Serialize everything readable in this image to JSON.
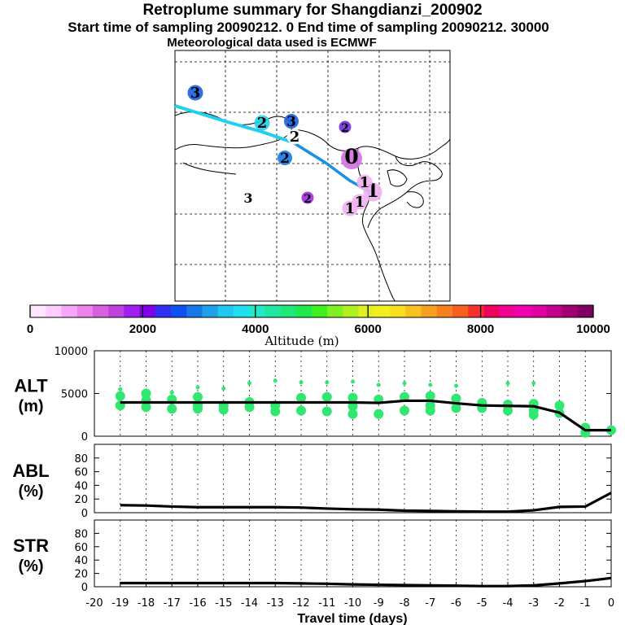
{
  "header": {
    "title": "Retroplume summary for Shangdianzi_200902",
    "sampling": "Start time of sampling 20090212.     0     End time of sampling 20090212. 30000",
    "met": "Meteorological data used is ECMWF"
  },
  "colorbar": {
    "title": "Altitude (m)",
    "tick_labels": [
      "0",
      "2000",
      "4000",
      "6000",
      "8000",
      "10000"
    ],
    "colors": [
      "#ffe6ff",
      "#ffccff",
      "#f5a8f5",
      "#ec84ec",
      "#d860e0",
      "#c040e0",
      "#a020f0",
      "#8000e8",
      "#3030f0",
      "#1050f0",
      "#1878e8",
      "#20a0e8",
      "#20c8f0",
      "#20e0f0",
      "#20e8c8",
      "#20e8a0",
      "#20e878",
      "#20e850",
      "#40f020",
      "#80f020",
      "#b0f020",
      "#e0f020",
      "#f0f020",
      "#f8e020",
      "#f8c020",
      "#f8a020",
      "#f88020",
      "#f86020",
      "#f83030",
      "#f00060",
      "#f00090",
      "#f000b0",
      "#e000a0",
      "#c0008a",
      "#a00070",
      "#800060"
    ]
  },
  "map": {
    "labels": [
      {
        "text": "3",
        "color": "#1860e0"
      },
      {
        "text": "2",
        "color": "#20d0e8"
      },
      {
        "text": "3",
        "color": "#1860e0"
      },
      {
        "text": "2",
        "color": "#7030e0"
      },
      {
        "text": "2",
        "color": "#ffffff"
      },
      {
        "text": "2",
        "color": "#1878e8"
      },
      {
        "text": "0",
        "color": "#d070e0"
      },
      {
        "text": "3",
        "color": "#ffffff"
      },
      {
        "text": "2",
        "color": "#a030e0"
      },
      {
        "text": "1",
        "color": "#f0b0f0"
      },
      {
        "text": "1",
        "color": "#f0b0f0"
      },
      {
        "text": "1",
        "color": "#f0b0f0"
      },
      {
        "text": "1",
        "color": "#f0b0f0"
      }
    ]
  },
  "chart_data": [
    {
      "type": "line",
      "title": "ALT (m)",
      "ylabel_line1": "ALT",
      "ylabel_line2": "(m)",
      "ylim": [
        0,
        10000
      ],
      "yticks": [
        "10000",
        "5000",
        "0"
      ],
      "ytick_values": [
        10000,
        5000,
        0
      ],
      "x": [
        -19,
        -18,
        -17,
        -16,
        -15,
        -14,
        -13,
        -12,
        -11,
        -10,
        -9,
        -8,
        -7,
        -6,
        -5,
        -4,
        -3,
        -2,
        -1,
        0
      ],
      "values": [
        3950,
        3950,
        3950,
        3950,
        3950,
        3950,
        3950,
        3950,
        3950,
        3950,
        3900,
        4150,
        4150,
        3850,
        3600,
        3550,
        3500,
        2750,
        700,
        700
      ],
      "scatter": [
        {
          "x": -19,
          "y": 5500
        },
        {
          "x": -19,
          "y": 4700
        },
        {
          "x": -19,
          "y": 3600
        },
        {
          "x": -18,
          "y": 5000
        },
        {
          "x": -18,
          "y": 4200
        },
        {
          "x": -18,
          "y": 3400
        },
        {
          "x": -17,
          "y": 5100
        },
        {
          "x": -17,
          "y": 4300
        },
        {
          "x": -17,
          "y": 3200
        },
        {
          "x": -16,
          "y": 5700
        },
        {
          "x": -16,
          "y": 4600
        },
        {
          "x": -16,
          "y": 3600
        },
        {
          "x": -16,
          "y": 3200
        },
        {
          "x": -15,
          "y": 5600
        },
        {
          "x": -15,
          "y": 3600
        },
        {
          "x": -15,
          "y": 3100
        },
        {
          "x": -14,
          "y": 6200
        },
        {
          "x": -14,
          "y": 4000
        },
        {
          "x": -14,
          "y": 3400
        },
        {
          "x": -13,
          "y": 6500
        },
        {
          "x": -13,
          "y": 3600
        },
        {
          "x": -13,
          "y": 2900
        },
        {
          "x": -12,
          "y": 6300
        },
        {
          "x": -12,
          "y": 4500
        },
        {
          "x": -12,
          "y": 3000
        },
        {
          "x": -11,
          "y": 6300
        },
        {
          "x": -11,
          "y": 4600
        },
        {
          "x": -11,
          "y": 2900
        },
        {
          "x": -10,
          "y": 6400
        },
        {
          "x": -10,
          "y": 4500
        },
        {
          "x": -10,
          "y": 3500
        },
        {
          "x": -10,
          "y": 2600
        },
        {
          "x": -9,
          "y": 6000
        },
        {
          "x": -9,
          "y": 4300
        },
        {
          "x": -9,
          "y": 2600
        },
        {
          "x": -8,
          "y": 6200
        },
        {
          "x": -8,
          "y": 4600
        },
        {
          "x": -8,
          "y": 3000
        },
        {
          "x": -7,
          "y": 6000
        },
        {
          "x": -7,
          "y": 4700
        },
        {
          "x": -7,
          "y": 3600
        },
        {
          "x": -7,
          "y": 3000
        },
        {
          "x": -6,
          "y": 5900
        },
        {
          "x": -6,
          "y": 4400
        },
        {
          "x": -6,
          "y": 3300
        },
        {
          "x": -5,
          "y": 3900
        },
        {
          "x": -5,
          "y": 3300
        },
        {
          "x": -4,
          "y": 6200
        },
        {
          "x": -4,
          "y": 3700
        },
        {
          "x": -4,
          "y": 3000
        },
        {
          "x": -3,
          "y": 6200
        },
        {
          "x": -3,
          "y": 3800
        },
        {
          "x": -3,
          "y": 3000
        },
        {
          "x": -3,
          "y": 2500
        },
        {
          "x": -2,
          "y": 3600
        },
        {
          "x": -2,
          "y": 2700
        },
        {
          "x": -1,
          "y": 1000
        },
        {
          "x": -1,
          "y": 400
        },
        {
          "x": 0,
          "y": 700
        }
      ]
    },
    {
      "type": "line",
      "title": "ABL (%)",
      "ylabel_line1": "ABL",
      "ylabel_line2": "(%)",
      "ylim": [
        0,
        100
      ],
      "yticks": [
        "80",
        "60",
        "40",
        "20",
        "0"
      ],
      "ytick_values": [
        80,
        60,
        40,
        20,
        0
      ],
      "x": [
        -19,
        -18,
        -17,
        -16,
        -15,
        -14,
        -13,
        -12,
        -11,
        -10,
        -9,
        -8,
        -7,
        -6,
        -5,
        -4,
        -3,
        -2,
        -1,
        0
      ],
      "values": [
        11,
        10.5,
        9,
        8,
        8,
        8,
        8,
        7.5,
        6,
        5,
        4.5,
        3,
        2.5,
        2,
        1.5,
        1.5,
        3.5,
        8.5,
        9,
        29
      ]
    },
    {
      "type": "line",
      "title": "STR (%)",
      "ylabel_line1": "STR",
      "ylabel_line2": "(%)",
      "ylim": [
        0,
        100
      ],
      "yticks": [
        "80",
        "60",
        "40",
        "20",
        "0"
      ],
      "ytick_values": [
        80,
        60,
        40,
        20,
        0
      ],
      "x": [
        -19,
        -18,
        -17,
        -16,
        -15,
        -14,
        -13,
        -12,
        -11,
        -10,
        -9,
        -8,
        -7,
        -6,
        -5,
        -4,
        -3,
        -2,
        -1,
        0
      ],
      "values": [
        5.5,
        5.5,
        5.5,
        5.5,
        5.5,
        5.5,
        5.5,
        5,
        4.5,
        3.5,
        3,
        2.5,
        2,
        1.5,
        1,
        1,
        2,
        5,
        8.5,
        13
      ]
    }
  ],
  "xaxis": {
    "label": "Travel time (days)",
    "ticks": [
      "-20",
      "-19",
      "-18",
      "-17",
      "-16",
      "-15",
      "-14",
      "-13",
      "-12",
      "-11",
      "-10",
      "-9",
      "-8",
      "-7",
      "-6",
      "-5",
      "-4",
      "-3",
      "-2",
      "-1",
      "0"
    ],
    "tick_values": [
      -20,
      -19,
      -18,
      -17,
      -16,
      -15,
      -14,
      -13,
      -12,
      -11,
      -10,
      -9,
      -8,
      -7,
      -6,
      -5,
      -4,
      -3,
      -2,
      -1,
      0
    ]
  }
}
